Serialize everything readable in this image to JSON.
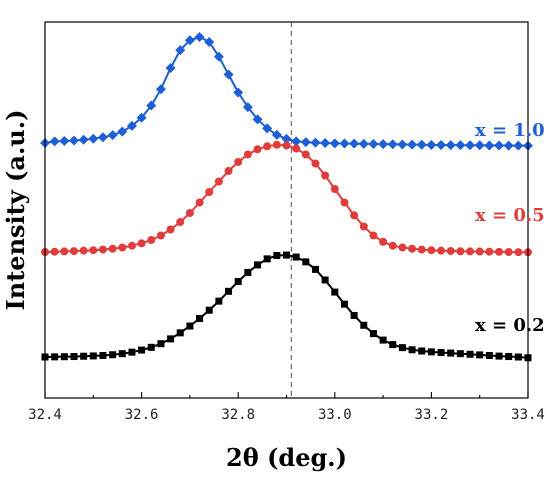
{
  "chart_data": {
    "type": "line",
    "xlabel": "2θ (deg.)",
    "ylabel": "Intensity (a.u.)",
    "xlim": [
      32.4,
      33.4
    ],
    "xticks": [
      "32.4",
      "32.6",
      "32.8",
      "33.0",
      "33.2",
      "33.4"
    ],
    "yticks_visible": false,
    "grid": false,
    "legend": "none",
    "reference_line_x": 32.91,
    "series": [
      {
        "name": "x = 1.0",
        "color": "#1f5fd6",
        "marker": "diamond",
        "x": [
          32.4,
          32.42,
          32.44,
          32.46,
          32.48,
          32.5,
          32.52,
          32.54,
          32.56,
          32.58,
          32.6,
          32.62,
          32.64,
          32.66,
          32.68,
          32.7,
          32.72,
          32.74,
          32.76,
          32.78,
          32.8,
          32.82,
          32.84,
          32.86,
          32.88,
          32.9,
          32.92,
          32.94,
          32.96,
          32.98,
          33.0,
          33.02,
          33.04,
          33.06,
          33.08,
          33.1,
          33.12,
          33.14,
          33.16,
          33.18,
          33.2,
          33.22,
          33.24,
          33.26,
          33.28,
          33.3,
          33.32,
          33.34,
          33.36,
          33.38,
          33.4
        ],
        "y": [
          0.0,
          0.1,
          0.12,
          0.15,
          0.2,
          0.26,
          0.35,
          0.48,
          0.7,
          1.05,
          1.55,
          2.3,
          3.3,
          4.6,
          5.7,
          6.3,
          6.5,
          6.2,
          5.3,
          4.2,
          3.1,
          2.2,
          1.45,
          0.9,
          0.5,
          0.25,
          0.1,
          0.05,
          0.02,
          0.0,
          -0.02,
          -0.03,
          -0.04,
          -0.05,
          -0.06,
          -0.07,
          -0.08,
          -0.09,
          -0.1,
          -0.11,
          -0.12,
          -0.12,
          -0.13,
          -0.13,
          -0.14,
          -0.14,
          -0.15,
          -0.15,
          -0.16,
          -0.16,
          -0.17
        ]
      },
      {
        "name": "x = 0.5",
        "color": "#e03c3c",
        "marker": "circle",
        "x": [
          32.4,
          32.42,
          32.44,
          32.46,
          32.48,
          32.5,
          32.52,
          32.54,
          32.56,
          32.58,
          32.6,
          32.62,
          32.64,
          32.66,
          32.68,
          32.7,
          32.72,
          32.74,
          32.76,
          32.78,
          32.8,
          32.82,
          32.84,
          32.86,
          32.88,
          32.9,
          32.92,
          32.94,
          32.96,
          32.98,
          33.0,
          33.02,
          33.04,
          33.06,
          33.08,
          33.1,
          33.12,
          33.14,
          33.16,
          33.18,
          33.2,
          33.22,
          33.24,
          33.26,
          33.28,
          33.3,
          33.32,
          33.34,
          33.36,
          33.38,
          33.4
        ],
        "y": [
          0.0,
          0.02,
          0.04,
          0.06,
          0.09,
          0.12,
          0.16,
          0.22,
          0.3,
          0.42,
          0.58,
          0.8,
          1.1,
          1.5,
          2.0,
          2.6,
          3.3,
          4.0,
          4.7,
          5.4,
          6.0,
          6.5,
          6.85,
          7.05,
          7.15,
          7.1,
          6.9,
          6.5,
          5.9,
          5.1,
          4.2,
          3.3,
          2.45,
          1.7,
          1.1,
          0.68,
          0.42,
          0.3,
          0.22,
          0.16,
          0.12,
          0.09,
          0.07,
          0.05,
          0.04,
          0.03,
          0.02,
          0.01,
          0.0,
          -0.01,
          -0.02
        ]
      },
      {
        "name": "x = 0.2",
        "color": "#000000",
        "marker": "square",
        "x": [
          32.4,
          32.42,
          32.44,
          32.46,
          32.48,
          32.5,
          32.52,
          32.54,
          32.56,
          32.58,
          32.6,
          32.62,
          32.64,
          32.66,
          32.68,
          32.7,
          32.72,
          32.74,
          32.76,
          32.78,
          32.8,
          32.82,
          32.84,
          32.86,
          32.88,
          32.9,
          32.92,
          32.94,
          32.96,
          32.98,
          33.0,
          33.02,
          33.04,
          33.06,
          33.08,
          33.1,
          33.12,
          33.14,
          33.16,
          33.18,
          33.2,
          33.22,
          33.24,
          33.26,
          33.28,
          33.3,
          33.32,
          33.34,
          33.36,
          33.38,
          33.4
        ],
        "y": [
          0.0,
          0.01,
          0.02,
          0.03,
          0.05,
          0.07,
          0.1,
          0.15,
          0.22,
          0.32,
          0.46,
          0.64,
          0.88,
          1.2,
          1.6,
          2.05,
          2.55,
          3.1,
          3.7,
          4.35,
          5.0,
          5.6,
          6.1,
          6.5,
          6.72,
          6.75,
          6.62,
          6.3,
          5.8,
          5.1,
          4.3,
          3.5,
          2.75,
          2.1,
          1.55,
          1.12,
          0.82,
          0.62,
          0.48,
          0.4,
          0.34,
          0.3,
          0.26,
          0.22,
          0.18,
          0.14,
          0.1,
          0.06,
          0.03,
          0.0,
          -0.05
        ]
      }
    ]
  }
}
